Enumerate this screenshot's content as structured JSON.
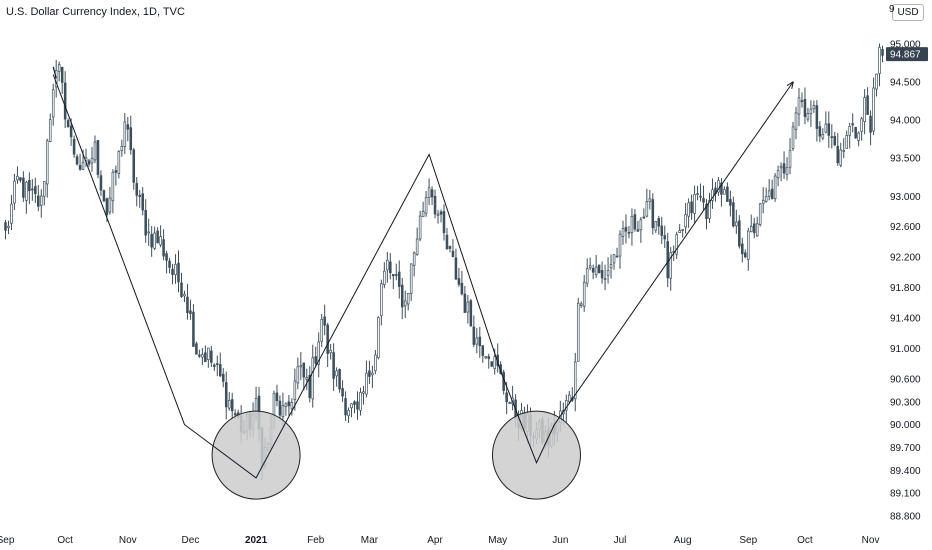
{
  "chart_data": {
    "type": "candlestick",
    "title": "U.S. Dollar Currency Index, 1D, TVC",
    "currency": "USD",
    "last_price": "94.867",
    "top_tick_partial": "9",
    "ylim": [
      88.6,
      95.2
    ],
    "yticks": [
      "95.000",
      "94.500",
      "94.000",
      "93.500",
      "93.000",
      "92.600",
      "92.200",
      "91.800",
      "91.400",
      "91.000",
      "90.600",
      "90.300",
      "90.000",
      "89.700",
      "89.400",
      "89.100",
      "88.800"
    ],
    "xticks": [
      {
        "label": "Sep",
        "i": 0
      },
      {
        "label": "Oct",
        "i": 20
      },
      {
        "label": "Nov",
        "i": 41
      },
      {
        "label": "Dec",
        "i": 62
      },
      {
        "label": "2021",
        "i": 84,
        "bold": true
      },
      {
        "label": "Feb",
        "i": 104
      },
      {
        "label": "Mar",
        "i": 122
      },
      {
        "label": "Apr",
        "i": 144
      },
      {
        "label": "May",
        "i": 165
      },
      {
        "label": "Jun",
        "i": 186
      },
      {
        "label": "Jul",
        "i": 206
      },
      {
        "label": "Aug",
        "i": 227
      },
      {
        "label": "Sep",
        "i": 249
      },
      {
        "label": "Oct",
        "i": 268
      },
      {
        "label": "Nov",
        "i": 290
      }
    ],
    "anchors": [
      [
        0,
        92.5
      ],
      [
        4,
        93.2
      ],
      [
        8,
        93.0
      ],
      [
        12,
        92.9
      ],
      [
        16,
        94.5
      ],
      [
        18,
        94.6
      ],
      [
        22,
        93.7
      ],
      [
        26,
        93.3
      ],
      [
        30,
        93.6
      ],
      [
        34,
        92.8
      ],
      [
        38,
        93.5
      ],
      [
        40,
        94.0
      ],
      [
        44,
        93.0
      ],
      [
        48,
        92.5
      ],
      [
        52,
        92.4
      ],
      [
        56,
        92.0
      ],
      [
        60,
        91.8
      ],
      [
        64,
        91.0
      ],
      [
        68,
        90.9
      ],
      [
        72,
        90.6
      ],
      [
        76,
        90.2
      ],
      [
        80,
        89.9
      ],
      [
        84,
        90.2
      ],
      [
        86,
        89.6
      ],
      [
        88,
        89.7
      ],
      [
        90,
        90.3
      ],
      [
        94,
        90.1
      ],
      [
        98,
        90.7
      ],
      [
        102,
        90.5
      ],
      [
        106,
        91.4
      ],
      [
        108,
        91.0
      ],
      [
        110,
        90.7
      ],
      [
        114,
        90.3
      ],
      [
        118,
        90.1
      ],
      [
        120,
        90.4
      ],
      [
        124,
        91.0
      ],
      [
        126,
        91.8
      ],
      [
        128,
        92.1
      ],
      [
        130,
        91.9
      ],
      [
        134,
        91.6
      ],
      [
        138,
        92.5
      ],
      [
        142,
        93.2
      ],
      [
        144,
        92.9
      ],
      [
        146,
        92.6
      ],
      [
        148,
        92.3
      ],
      [
        150,
        92.1
      ],
      [
        154,
        91.6
      ],
      [
        158,
        91.1
      ],
      [
        162,
        91.0
      ],
      [
        166,
        90.6
      ],
      [
        170,
        90.2
      ],
      [
        174,
        90.0
      ],
      [
        178,
        89.9
      ],
      [
        182,
        89.8
      ],
      [
        186,
        90.1
      ],
      [
        190,
        90.4
      ],
      [
        192,
        91.5
      ],
      [
        194,
        92.0
      ],
      [
        196,
        92.1
      ],
      [
        200,
        91.9
      ],
      [
        204,
        92.2
      ],
      [
        208,
        92.5
      ],
      [
        212,
        92.7
      ],
      [
        216,
        92.8
      ],
      [
        220,
        92.6
      ],
      [
        222,
        92.0
      ],
      [
        224,
        92.2
      ],
      [
        228,
        92.7
      ],
      [
        232,
        93.0
      ],
      [
        236,
        92.8
      ],
      [
        238,
        93.2
      ],
      [
        240,
        93.1
      ],
      [
        244,
        92.6
      ],
      [
        248,
        92.3
      ],
      [
        252,
        92.7
      ],
      [
        256,
        93.0
      ],
      [
        260,
        93.3
      ],
      [
        262,
        93.5
      ],
      [
        264,
        94.0
      ],
      [
        266,
        94.3
      ],
      [
        268,
        94.2
      ],
      [
        272,
        94.0
      ],
      [
        276,
        93.8
      ],
      [
        280,
        93.5
      ],
      [
        284,
        94.0
      ],
      [
        286,
        93.8
      ],
      [
        288,
        94.2
      ],
      [
        290,
        94.0
      ],
      [
        292,
        94.5
      ],
      [
        293,
        94.85
      ]
    ],
    "pattern_line": [
      [
        16,
        94.6
      ],
      [
        60,
        90.0
      ],
      [
        84,
        89.3
      ],
      [
        142,
        93.55
      ],
      [
        166,
        90.7
      ],
      [
        178,
        89.5
      ],
      [
        184,
        90.0
      ],
      [
        264,
        94.5
      ]
    ],
    "circles": [
      {
        "x": 84,
        "y": 89.6,
        "r": 44
      },
      {
        "x": 178,
        "y": 89.6,
        "r": 44
      }
    ],
    "colors": {
      "up": "#ffffff",
      "down": "#3d4f5c",
      "wick": "#3d4f5c",
      "line": "#131722",
      "circle_fill": "#cccccc",
      "circle_stroke": "#222222",
      "pricebox": "#364350"
    }
  }
}
